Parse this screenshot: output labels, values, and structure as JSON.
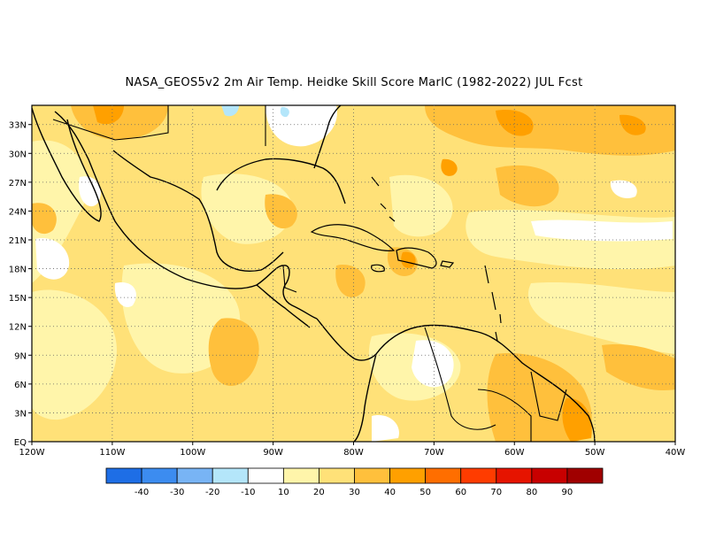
{
  "title": "NASA_GEOS5v2  2m Air Temp. Heidke Skill Score MarIC (1982-2022) JUL Fcst",
  "map": {
    "lon_range": [
      -120,
      -40
    ],
    "lat_range": [
      0,
      35
    ],
    "lat_ticks": [
      {
        "value": 33,
        "label": "33N"
      },
      {
        "value": 30,
        "label": "30N"
      },
      {
        "value": 27,
        "label": "27N"
      },
      {
        "value": 24,
        "label": "24N"
      },
      {
        "value": 21,
        "label": "21N"
      },
      {
        "value": 18,
        "label": "18N"
      },
      {
        "value": 15,
        "label": "15N"
      },
      {
        "value": 12,
        "label": "12N"
      },
      {
        "value": 9,
        "label": "9N"
      },
      {
        "value": 6,
        "label": "6N"
      },
      {
        "value": 3,
        "label": "3N"
      },
      {
        "value": 0,
        "label": "EQ"
      }
    ],
    "lon_ticks": [
      {
        "value": -120,
        "label": "120W"
      },
      {
        "value": -110,
        "label": "110W"
      },
      {
        "value": -100,
        "label": "100W"
      },
      {
        "value": -90,
        "label": "90W"
      },
      {
        "value": -80,
        "label": "80W"
      },
      {
        "value": -70,
        "label": "70W"
      },
      {
        "value": -60,
        "label": "60W"
      },
      {
        "value": -50,
        "label": "50W"
      },
      {
        "value": -40,
        "label": "40W"
      }
    ],
    "grid": "dotted"
  },
  "colorbar": {
    "bins": [
      {
        "color": "#1e6ee6"
      },
      {
        "color": "#3c8cf0"
      },
      {
        "color": "#78b4f5"
      },
      {
        "color": "#b4e6fa"
      },
      {
        "color": "#ffffff"
      },
      {
        "color": "#fff5aa"
      },
      {
        "color": "#ffe178"
      },
      {
        "color": "#ffc03c"
      },
      {
        "color": "#ffa000"
      },
      {
        "color": "#ff6e00"
      },
      {
        "color": "#ff3c00"
      },
      {
        "color": "#e61400"
      },
      {
        "color": "#c80000"
      },
      {
        "color": "#a00000"
      }
    ],
    "labels": [
      "-40",
      "-30",
      "-20",
      "-10",
      "10",
      "20",
      "30",
      "40",
      "50",
      "60",
      "70",
      "80",
      "90"
    ]
  }
}
